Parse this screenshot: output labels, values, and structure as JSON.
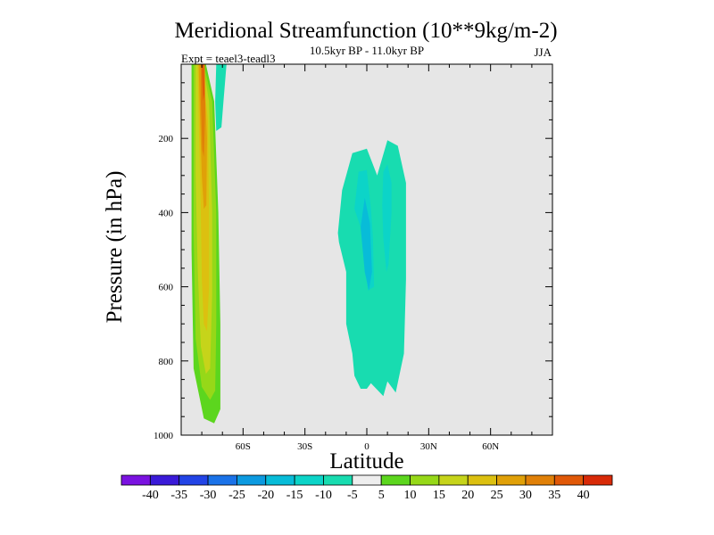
{
  "chart_data": {
    "type": "contour",
    "title": "Meridional Streamfunction (10**9kg/m-2)",
    "subtitle": "10.5kyr BP - 11.0kyr BP",
    "left_note": "Expt = teael3-teadl3",
    "season": "JJA",
    "xlabel": "Latitude",
    "ylabel": "Pressure (in hPa)",
    "xlim": [
      -90,
      90
    ],
    "ylim": [
      1000,
      0
    ],
    "x_ticks": [
      -60,
      -30,
      0,
      30,
      60
    ],
    "x_tick_labels": [
      "60S",
      "30S",
      "0",
      "30N",
      "60N"
    ],
    "y_ticks": [
      200,
      400,
      600,
      800,
      1000
    ],
    "y_tick_labels": [
      "200",
      "400",
      "600",
      "800",
      "1000"
    ],
    "background_color": "#e6e6e6",
    "colorbar": {
      "labels": [
        "-40",
        "-35",
        "-30",
        "-25",
        "-20",
        "-15",
        "-10",
        "-5",
        "5",
        "10",
        "15",
        "20",
        "25",
        "30",
        "35",
        "40"
      ],
      "colors": [
        "#7a12e0",
        "#3a1ad8",
        "#2244e6",
        "#1a72e8",
        "#0c9ae0",
        "#08bcd8",
        "#0cd4c8",
        "#18dcb0",
        "#eeeeee",
        "#5cd61e",
        "#96d818",
        "#c6d41a",
        "#dcc010",
        "#e0a008",
        "#e08008",
        "#e05808",
        "#d82a08"
      ]
    },
    "regions": [
      {
        "name": "positive-cell-5",
        "range": "5 to 10",
        "color": "#5cd61e",
        "points": [
          [
            -85,
            0
          ],
          [
            -78,
            0
          ],
          [
            -74,
            100
          ],
          [
            -72,
            400
          ],
          [
            -71,
            700
          ],
          [
            -71,
            930
          ],
          [
            -74,
            968
          ],
          [
            -79,
            955
          ],
          [
            -84,
            820
          ],
          [
            -85,
            500
          ]
        ]
      },
      {
        "name": "positive-cell-10",
        "range": "10 to 15",
        "color": "#96d818",
        "points": [
          [
            -84,
            0
          ],
          [
            -79,
            0
          ],
          [
            -75,
            100
          ],
          [
            -73,
            400
          ],
          [
            -73,
            700
          ],
          [
            -73.5,
            880
          ],
          [
            -76,
            905
          ],
          [
            -80,
            870
          ],
          [
            -83,
            740
          ],
          [
            -84,
            450
          ]
        ]
      },
      {
        "name": "positive-cell-15",
        "range": "15 to 20",
        "color": "#c6d41a",
        "points": [
          [
            -83,
            0
          ],
          [
            -79.5,
            0
          ],
          [
            -76.5,
            100
          ],
          [
            -75,
            400
          ],
          [
            -75,
            620
          ],
          [
            -76,
            820
          ],
          [
            -78,
            835
          ],
          [
            -80.5,
            760
          ],
          [
            -82,
            550
          ],
          [
            -83,
            300
          ]
        ]
      },
      {
        "name": "positive-cell-20",
        "range": "20 to 25",
        "color": "#dcc010",
        "points": [
          [
            -82,
            0
          ],
          [
            -80,
            0
          ],
          [
            -77,
            150
          ],
          [
            -76.5,
            420
          ],
          [
            -76.5,
            600
          ],
          [
            -77.5,
            720
          ],
          [
            -79,
            700
          ],
          [
            -80,
            580
          ],
          [
            -80.5,
            400
          ],
          [
            -81.5,
            150
          ]
        ]
      },
      {
        "name": "positive-cell-25",
        "range": "25 to 30",
        "color": "#e0a008",
        "points": [
          [
            -81.5,
            0
          ],
          [
            -79,
            0
          ],
          [
            -77.5,
            200
          ],
          [
            -77.8,
            380
          ],
          [
            -79,
            390
          ],
          [
            -80,
            300
          ],
          [
            -81,
            120
          ]
        ]
      },
      {
        "name": "positive-cell-30",
        "range": "30 to 35",
        "color": "#e08008",
        "points": [
          [
            -80.5,
            0
          ],
          [
            -78.5,
            0
          ],
          [
            -78.3,
            120
          ],
          [
            -79,
            250
          ],
          [
            -79.8,
            230
          ],
          [
            -80.5,
            100
          ]
        ]
      },
      {
        "name": "positive-cell-35",
        "range": "35 to 40",
        "color": "#e05808",
        "points": [
          [
            -80,
            0
          ],
          [
            -79,
            0
          ],
          [
            -78.8,
            80
          ],
          [
            -79.4,
            100
          ]
        ]
      },
      {
        "name": "high-latitude-negative-cell",
        "range": "-10 to -5",
        "color": "#18dcb0",
        "points": [
          [
            -73,
            0
          ],
          [
            -68,
            0
          ],
          [
            -69.5,
            100
          ],
          [
            -70.5,
            170
          ],
          [
            -73,
            180
          ],
          [
            -73.5,
            100
          ]
        ]
      },
      {
        "name": "tropical-negative-cell-5",
        "range": "-10 to -5",
        "color": "#18dcb0",
        "points": [
          [
            -12,
            340
          ],
          [
            -7,
            240
          ],
          [
            0,
            228
          ],
          [
            5,
            300
          ],
          [
            10,
            205
          ],
          [
            15,
            220
          ],
          [
            19,
            320
          ],
          [
            19,
            580
          ],
          [
            18,
            780
          ],
          [
            14,
            885
          ],
          [
            10,
            855
          ],
          [
            8,
            895
          ],
          [
            2,
            860
          ],
          [
            0,
            875
          ],
          [
            -3,
            875
          ],
          [
            -6,
            840
          ],
          [
            -7,
            780
          ],
          [
            -10,
            700
          ],
          [
            -10,
            560
          ],
          [
            -13.5,
            480
          ],
          [
            -14,
            455
          ]
        ]
      },
      {
        "name": "tropical-negative-cell-10-west",
        "range": "-15 to -10",
        "color": "#0cd4c8",
        "points": [
          [
            -6,
            390
          ],
          [
            -4,
            290
          ],
          [
            0,
            285
          ],
          [
            2,
            390
          ],
          [
            3,
            470
          ],
          [
            3.5,
            600
          ],
          [
            0.5,
            610
          ],
          [
            -1.5,
            520
          ],
          [
            -3,
            440
          ]
        ]
      },
      {
        "name": "tropical-negative-cell-10-east",
        "range": "-15 to -10",
        "color": "#0cd4c8",
        "points": [
          [
            8,
            290
          ],
          [
            10,
            270
          ],
          [
            12,
            320
          ],
          [
            12,
            400
          ],
          [
            10.5,
            540
          ],
          [
            9.5,
            560
          ],
          [
            8,
            470
          ],
          [
            7.5,
            380
          ]
        ]
      },
      {
        "name": "tropical-negative-cell-15",
        "range": "-20 to -15",
        "color": "#08bcd8",
        "points": [
          [
            -3,
            440
          ],
          [
            -1,
            360
          ],
          [
            1.5,
            430
          ],
          [
            2.5,
            560
          ],
          [
            1,
            610
          ],
          [
            -1,
            560
          ],
          [
            -2,
            500
          ]
        ]
      }
    ]
  }
}
